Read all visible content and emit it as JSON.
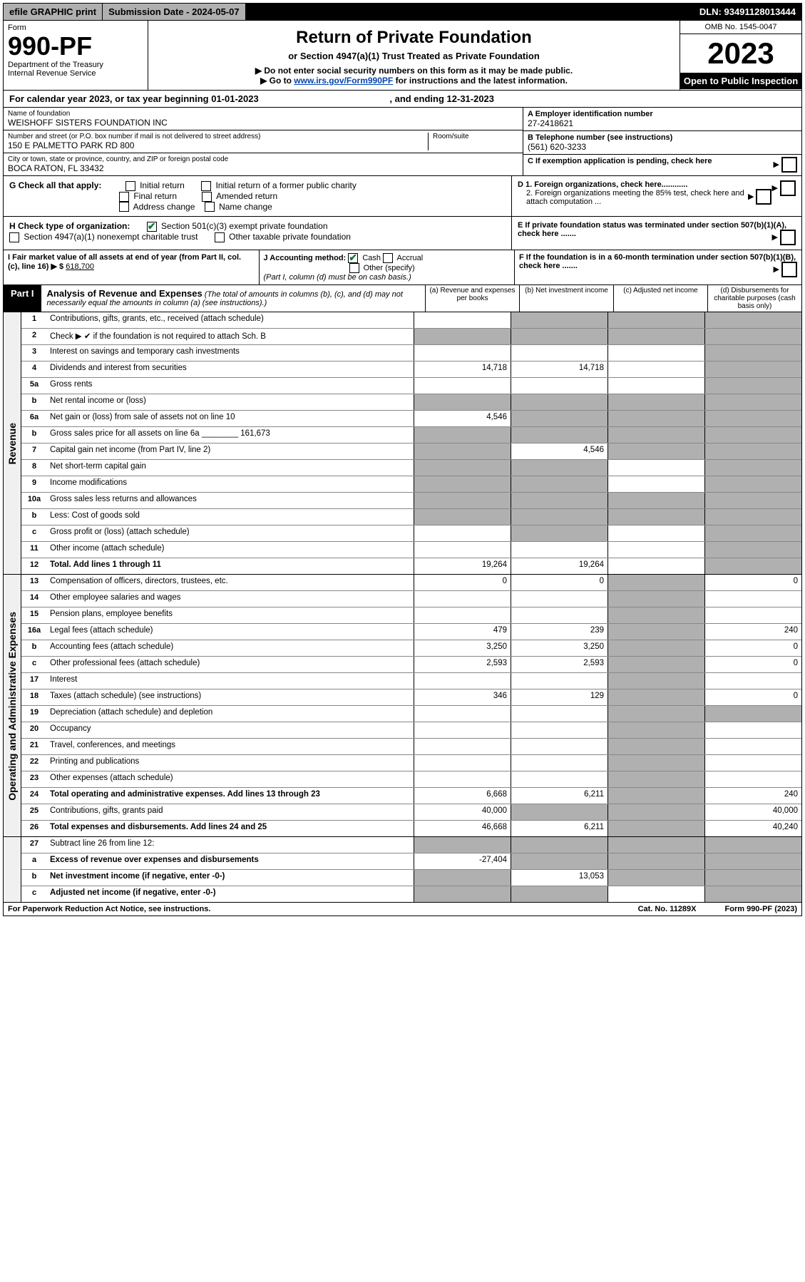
{
  "topbar": {
    "efile": "efile GRAPHIC print",
    "submission": "Submission Date - 2024-05-07",
    "dln": "DLN: 93491128013444"
  },
  "header": {
    "form_word": "Form",
    "form_number": "990-PF",
    "dept": "Department of the Treasury",
    "irs": "Internal Revenue Service",
    "title": "Return of Private Foundation",
    "subtitle": "or Section 4947(a)(1) Trust Treated as Private Foundation",
    "instr1": "▶ Do not enter social security numbers on this form as it may be made public.",
    "instr2_pre": "▶ Go to ",
    "instr2_link": "www.irs.gov/Form990PF",
    "instr2_post": " for instructions and the latest information.",
    "omb": "OMB No. 1545-0047",
    "year": "2023",
    "inspection": "Open to Public Inspection"
  },
  "calyear": {
    "text": "For calendar year 2023, or tax year beginning 01-01-2023",
    "ending": ", and ending 12-31-2023"
  },
  "info": {
    "name_label": "Name of foundation",
    "name": "WEISHOFF SISTERS FOUNDATION INC",
    "street_label": "Number and street (or P.O. box number if mail is not delivered to street address)",
    "street": "150 E PALMETTO PARK RD 800",
    "room_label": "Room/suite",
    "city_label": "City or town, state or province, country, and ZIP or foreign postal code",
    "city": "BOCA RATON, FL  33432",
    "a_label": "A Employer identification number",
    "a_val": "27-2418621",
    "b_label": "B Telephone number (see instructions)",
    "b_val": "(561) 620-3233",
    "c_label": "C If exemption application is pending, check here"
  },
  "checks": {
    "g": "G Check all that apply:",
    "g_items": [
      "Initial return",
      "Initial return of a former public charity",
      "Final return",
      "Amended return",
      "Address change",
      "Name change"
    ],
    "h": "H Check type of organization:",
    "h1": "Section 501(c)(3) exempt private foundation",
    "h2": "Section 4947(a)(1) nonexempt charitable trust",
    "h3": "Other taxable private foundation",
    "d1": "D 1. Foreign organizations, check here............",
    "d2": "2. Foreign organizations meeting the 85% test, check here and attach computation ...",
    "e": "E If private foundation status was terminated under section 507(b)(1)(A), check here .......",
    "i": "I Fair market value of all assets at end of year (from Part II, col. (c), line 16) ▶ $",
    "i_val": "618,700",
    "j": "J Accounting method:",
    "j_cash": "Cash",
    "j_accrual": "Accrual",
    "j_other": "Other (specify)",
    "j_note": "(Part I, column (d) must be on cash basis.)",
    "f": "F If the foundation is in a 60-month termination under section 507(b)(1)(B), check here ......."
  },
  "part1": {
    "label": "Part I",
    "title": "Analysis of Revenue and Expenses",
    "desc": "(The total of amounts in columns (b), (c), and (d) may not necessarily equal the amounts in column (a) (see instructions).)",
    "colA": "(a) Revenue and expenses per books",
    "colB": "(b) Net investment income",
    "colC": "(c) Adjusted net income",
    "colD": "(d) Disbursements for charitable purposes (cash basis only)"
  },
  "sides": {
    "revenue": "Revenue",
    "expenses": "Operating and Administrative Expenses"
  },
  "rows": [
    {
      "n": "1",
      "d": "Contributions, gifts, grants, etc., received (attach schedule)",
      "a": "",
      "b": "~",
      "c": "~",
      "dd": "~"
    },
    {
      "n": "2",
      "d": "Check ▶ ✔ if the foundation is not required to attach Sch. B",
      "a": "~",
      "b": "~",
      "c": "~",
      "dd": "~",
      "checked": true
    },
    {
      "n": "3",
      "d": "Interest on savings and temporary cash investments",
      "a": "",
      "b": "",
      "c": "",
      "dd": "~"
    },
    {
      "n": "4",
      "d": "Dividends and interest from securities",
      "a": "14,718",
      "b": "14,718",
      "c": "",
      "dd": "~"
    },
    {
      "n": "5a",
      "d": "Gross rents",
      "a": "",
      "b": "",
      "c": "",
      "dd": "~"
    },
    {
      "n": "b",
      "d": "Net rental income or (loss)",
      "a": "~",
      "b": "~",
      "c": "~",
      "dd": "~"
    },
    {
      "n": "6a",
      "d": "Net gain or (loss) from sale of assets not on line 10",
      "a": "4,546",
      "b": "~",
      "c": "~",
      "dd": "~"
    },
    {
      "n": "b",
      "d": "Gross sales price for all assets on line 6a ________ 161,673",
      "a": "~",
      "b": "~",
      "c": "~",
      "dd": "~"
    },
    {
      "n": "7",
      "d": "Capital gain net income (from Part IV, line 2)",
      "a": "~",
      "b": "4,546",
      "c": "~",
      "dd": "~"
    },
    {
      "n": "8",
      "d": "Net short-term capital gain",
      "a": "~",
      "b": "~",
      "c": "",
      "dd": "~"
    },
    {
      "n": "9",
      "d": "Income modifications",
      "a": "~",
      "b": "~",
      "c": "",
      "dd": "~"
    },
    {
      "n": "10a",
      "d": "Gross sales less returns and allowances",
      "a": "~",
      "b": "~",
      "c": "~",
      "dd": "~"
    },
    {
      "n": "b",
      "d": "Less: Cost of goods sold",
      "a": "~",
      "b": "~",
      "c": "~",
      "dd": "~"
    },
    {
      "n": "c",
      "d": "Gross profit or (loss) (attach schedule)",
      "a": "",
      "b": "~",
      "c": "",
      "dd": "~"
    },
    {
      "n": "11",
      "d": "Other income (attach schedule)",
      "a": "",
      "b": "",
      "c": "",
      "dd": "~"
    },
    {
      "n": "12",
      "d": "Total. Add lines 1 through 11",
      "a": "19,264",
      "b": "19,264",
      "c": "",
      "dd": "~",
      "bold": true
    }
  ],
  "exprows": [
    {
      "n": "13",
      "d": "Compensation of officers, directors, trustees, etc.",
      "a": "0",
      "b": "0",
      "c": "~",
      "dd": "0"
    },
    {
      "n": "14",
      "d": "Other employee salaries and wages",
      "a": "",
      "b": "",
      "c": "~",
      "dd": ""
    },
    {
      "n": "15",
      "d": "Pension plans, employee benefits",
      "a": "",
      "b": "",
      "c": "~",
      "dd": ""
    },
    {
      "n": "16a",
      "d": "Legal fees (attach schedule)",
      "a": "479",
      "b": "239",
      "c": "~",
      "dd": "240"
    },
    {
      "n": "b",
      "d": "Accounting fees (attach schedule)",
      "a": "3,250",
      "b": "3,250",
      "c": "~",
      "dd": "0"
    },
    {
      "n": "c",
      "d": "Other professional fees (attach schedule)",
      "a": "2,593",
      "b": "2,593",
      "c": "~",
      "dd": "0"
    },
    {
      "n": "17",
      "d": "Interest",
      "a": "",
      "b": "",
      "c": "~",
      "dd": ""
    },
    {
      "n": "18",
      "d": "Taxes (attach schedule) (see instructions)",
      "a": "346",
      "b": "129",
      "c": "~",
      "dd": "0"
    },
    {
      "n": "19",
      "d": "Depreciation (attach schedule) and depletion",
      "a": "",
      "b": "",
      "c": "~",
      "dd": "~"
    },
    {
      "n": "20",
      "d": "Occupancy",
      "a": "",
      "b": "",
      "c": "~",
      "dd": ""
    },
    {
      "n": "21",
      "d": "Travel, conferences, and meetings",
      "a": "",
      "b": "",
      "c": "~",
      "dd": ""
    },
    {
      "n": "22",
      "d": "Printing and publications",
      "a": "",
      "b": "",
      "c": "~",
      "dd": ""
    },
    {
      "n": "23",
      "d": "Other expenses (attach schedule)",
      "a": "",
      "b": "",
      "c": "~",
      "dd": ""
    },
    {
      "n": "24",
      "d": "Total operating and administrative expenses. Add lines 13 through 23",
      "a": "6,668",
      "b": "6,211",
      "c": "~",
      "dd": "240",
      "bold": true
    },
    {
      "n": "25",
      "d": "Contributions, gifts, grants paid",
      "a": "40,000",
      "b": "~",
      "c": "~",
      "dd": "40,000"
    },
    {
      "n": "26",
      "d": "Total expenses and disbursements. Add lines 24 and 25",
      "a": "46,668",
      "b": "6,211",
      "c": "~",
      "dd": "40,240",
      "bold": true
    }
  ],
  "netrows": [
    {
      "n": "27",
      "d": "Subtract line 26 from line 12:",
      "a": "~",
      "b": "~",
      "c": "~",
      "dd": "~"
    },
    {
      "n": "a",
      "d": "Excess of revenue over expenses and disbursements",
      "a": "-27,404",
      "b": "~",
      "c": "~",
      "dd": "~",
      "bold": true
    },
    {
      "n": "b",
      "d": "Net investment income (if negative, enter -0-)",
      "a": "~",
      "b": "13,053",
      "c": "~",
      "dd": "~",
      "bold": true
    },
    {
      "n": "c",
      "d": "Adjusted net income (if negative, enter -0-)",
      "a": "~",
      "b": "~",
      "c": "",
      "dd": "~",
      "bold": true
    }
  ],
  "footer": {
    "pra": "For Paperwork Reduction Act Notice, see instructions.",
    "cat": "Cat. No. 11289X",
    "form": "Form 990-PF (2023)"
  },
  "colors": {
    "grey": "#b0b0b0",
    "black": "#000000",
    "link": "#0645ad",
    "check": "#0a7a3a"
  }
}
